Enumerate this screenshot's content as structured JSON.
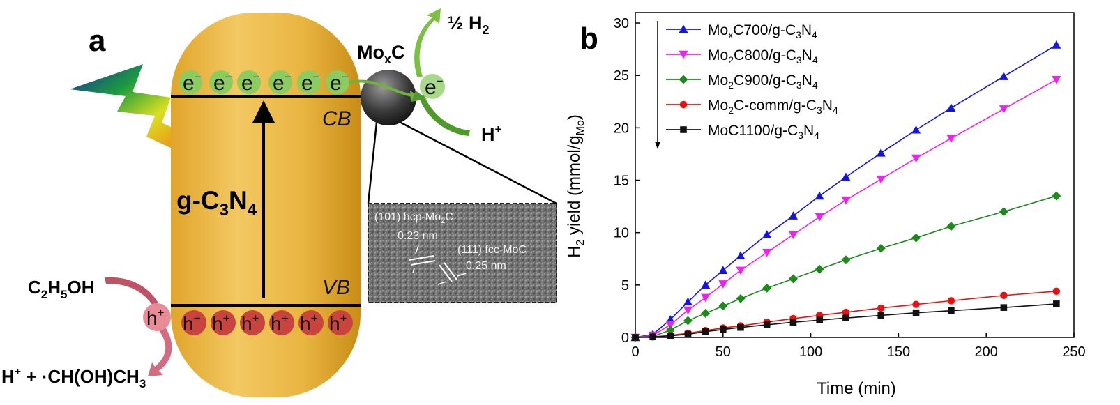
{
  "panel_a": {
    "label": "a",
    "electron": "e",
    "electron_sup": "−",
    "hole": "h",
    "hole_sup": "+",
    "cb": "CB",
    "vb": "VB",
    "semiconductor": {
      "main": "g-C",
      "s1": "3",
      "mid": "N",
      "s2": "4"
    },
    "cocatalyst": {
      "main": "Mo",
      "sub": "x",
      "tail": "C"
    },
    "h2_product": {
      "main": "½ H",
      "sub": "2"
    },
    "proton": {
      "main": "H",
      "sup": "+"
    },
    "ethanol": {
      "a": "C",
      "s1": "2",
      "b": "H",
      "s2": "5",
      "c": "OH"
    },
    "oxidation_product": {
      "main": "H",
      "sup": "+",
      "mid": " + ·CH(OH)CH",
      "sub": "3"
    },
    "tem": {
      "hcp_label": {
        "main": "(101) hcp-Mo",
        "sub": "2",
        "tail": "C"
      },
      "hcp_spacing": "0.23 nm",
      "fcc_label": "(111) fcc-MoC",
      "fcc_spacing": "0.25 nm"
    },
    "colors": {
      "band": "#E6B43A",
      "band_dark": "#C78A14",
      "electron": "#8CCB5E",
      "hole": "#C9443C",
      "arrow_green": "#6FB23C",
      "arrow_red": "#B8404E"
    }
  },
  "chart_data": {
    "label": "b",
    "type": "line",
    "xlabel": "Time (min)",
    "ylabel": {
      "main": "H",
      "sub1": "2",
      "mid": " yield (mmol/g",
      "sub2": "Mo",
      "tail": ")"
    },
    "xlim": [
      0,
      250
    ],
    "ylim": [
      0,
      31
    ],
    "xticks": [
      0,
      50,
      100,
      150,
      200,
      250
    ],
    "yticks": [
      0,
      5,
      10,
      15,
      20,
      25,
      30
    ],
    "grid": false,
    "legend_position": "top-left",
    "legend_arrow": "down",
    "series": [
      {
        "name": "MoxC700/g-C3N4",
        "label_parts": [
          [
            "Mo",
            ""
          ],
          [
            "x",
            "sub"
          ],
          [
            "C700/g-C",
            ""
          ],
          [
            "3",
            "sub"
          ],
          [
            "N",
            ""
          ],
          [
            "4",
            "sub"
          ]
        ],
        "color": "#1515E0",
        "marker": "triangle-up",
        "x": [
          0,
          10,
          20,
          30,
          40,
          50,
          60,
          75,
          90,
          105,
          120,
          140,
          160,
          180,
          210,
          240
        ],
        "y": [
          0,
          0.3,
          1.7,
          3.4,
          5.0,
          6.4,
          7.8,
          9.8,
          11.6,
          13.5,
          15.3,
          17.6,
          19.8,
          21.9,
          24.9,
          27.9
        ]
      },
      {
        "name": "Mo2C800/g-C3N4",
        "label_parts": [
          [
            "Mo",
            ""
          ],
          [
            "2",
            "sub"
          ],
          [
            "C800/g-C",
            ""
          ],
          [
            "3",
            "sub"
          ],
          [
            "N",
            ""
          ],
          [
            "4",
            "sub"
          ]
        ],
        "color": "#F020F0",
        "marker": "triangle-down",
        "x": [
          0,
          10,
          20,
          30,
          40,
          50,
          60,
          75,
          90,
          105,
          120,
          140,
          160,
          180,
          210,
          240
        ],
        "y": [
          0,
          0.2,
          1.2,
          2.6,
          3.8,
          5.1,
          6.4,
          8.1,
          9.8,
          11.5,
          13.1,
          15.1,
          17.1,
          19.0,
          21.8,
          24.6
        ]
      },
      {
        "name": "Mo2C900/g-C3N4",
        "label_parts": [
          [
            "Mo",
            ""
          ],
          [
            "2",
            "sub"
          ],
          [
            "C900/g-C",
            ""
          ],
          [
            "3",
            "sub"
          ],
          [
            "N",
            ""
          ],
          [
            "4",
            "sub"
          ]
        ],
        "color": "#1E8A1E",
        "marker": "diamond",
        "x": [
          0,
          10,
          20,
          30,
          40,
          50,
          60,
          75,
          90,
          105,
          120,
          140,
          160,
          180,
          210,
          240
        ],
        "y": [
          0,
          0.1,
          0.7,
          1.6,
          2.3,
          3.0,
          3.7,
          4.7,
          5.6,
          6.5,
          7.4,
          8.5,
          9.5,
          10.6,
          12.0,
          13.5
        ]
      },
      {
        "name": "Mo2C-comm/g-C3N4",
        "label_parts": [
          [
            "Mo",
            ""
          ],
          [
            "2",
            "sub"
          ],
          [
            "C-comm/g-C",
            ""
          ],
          [
            "3",
            "sub"
          ],
          [
            "N",
            ""
          ],
          [
            "4",
            "sub"
          ]
        ],
        "color": "#E81010",
        "marker": "circle",
        "x": [
          0,
          10,
          20,
          30,
          40,
          50,
          60,
          75,
          90,
          105,
          120,
          140,
          160,
          180,
          210,
          240
        ],
        "y": [
          0,
          0.05,
          0.2,
          0.4,
          0.65,
          0.9,
          1.1,
          1.45,
          1.8,
          2.1,
          2.4,
          2.8,
          3.15,
          3.5,
          4.0,
          4.4
        ]
      },
      {
        "name": "MoC1100/g-C3N4",
        "label_parts": [
          [
            "MoC1100/g-C",
            ""
          ],
          [
            "3",
            "sub"
          ],
          [
            "N",
            ""
          ],
          [
            "4",
            "sub"
          ]
        ],
        "color": "#111111",
        "marker": "square",
        "x": [
          0,
          10,
          20,
          30,
          40,
          50,
          60,
          75,
          90,
          105,
          120,
          140,
          160,
          180,
          210,
          240
        ],
        "y": [
          0,
          0.05,
          0.15,
          0.3,
          0.55,
          0.75,
          0.95,
          1.2,
          1.45,
          1.65,
          1.85,
          2.1,
          2.35,
          2.55,
          2.85,
          3.2
        ]
      }
    ]
  }
}
